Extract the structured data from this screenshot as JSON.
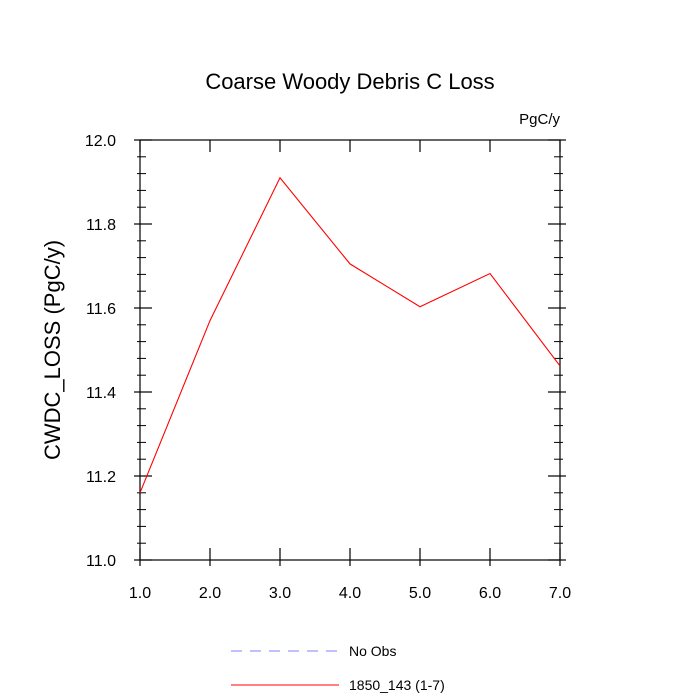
{
  "chart_data": {
    "type": "line",
    "title": "Coarse Woody Debris C Loss",
    "units_label": "PgC/y",
    "ylabel": "CWDC_LOSS  (PgC/y)",
    "xlabel": "",
    "xlim": [
      1.0,
      7.0
    ],
    "ylim": [
      11.0,
      12.0
    ],
    "x_ticks": [
      "1.0",
      "2.0",
      "3.0",
      "4.0",
      "5.0",
      "6.0",
      "7.0"
    ],
    "y_ticks": [
      "11.0",
      "11.2",
      "11.4",
      "11.6",
      "11.8",
      "12.0"
    ],
    "x": [
      1,
      2,
      3,
      4,
      5,
      6,
      7
    ],
    "series": [
      {
        "name": "1850_143 (1-7)",
        "values": [
          11.16,
          11.57,
          11.91,
          11.705,
          11.603,
          11.682,
          11.462
        ],
        "color": "#ff0000",
        "dash": "solid"
      }
    ],
    "legend": [
      {
        "label": "No Obs",
        "color": "#8080ff",
        "dash": "dashed"
      },
      {
        "label": "1850_143 (1-7)",
        "color": "#ff0000",
        "dash": "solid"
      }
    ],
    "legend_position": "bottom-center",
    "grid": false
  }
}
